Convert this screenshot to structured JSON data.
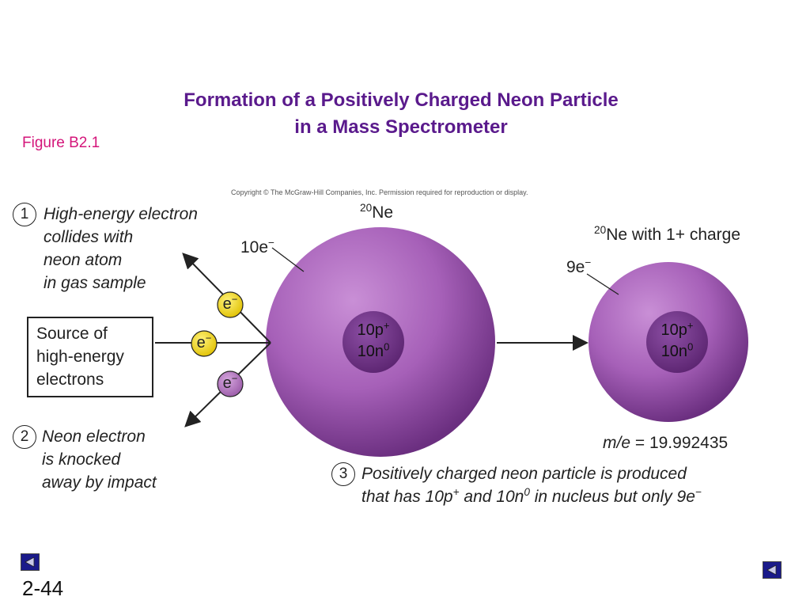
{
  "title": {
    "line1": "Formation of a Positively Charged Neon Particle",
    "line2": "in a Mass Spectrometer"
  },
  "figure_label": "Figure B2.1",
  "copyright": "Copyright © The McGraw-Hill Companies, Inc. Permission required for reproduction or display.",
  "steps": [
    {
      "number": "1",
      "lines": [
        "High-energy electron",
        "collides with",
        "neon atom",
        "in gas sample"
      ]
    },
    {
      "number": "2",
      "lines": [
        "Neon electron",
        "is knocked",
        "away by impact"
      ]
    },
    {
      "number": "3",
      "line1": "Positively charged neon particle is produced",
      "line2_a": "that has 10p",
      "line2_b": "+",
      "line2_c": " and 10n",
      "line2_d": "0",
      "line2_e": " in nucleus but only 9e",
      "line2_f": "−"
    }
  ],
  "source_box": {
    "lines": [
      "Source of",
      "high-energy",
      "electrons"
    ]
  },
  "electrons": {
    "label": "e",
    "charge": "−"
  },
  "atom_neutral": {
    "mass_number": "20",
    "symbol": "Ne",
    "electron_label": "10e",
    "electron_charge": "−",
    "protons": "10p",
    "proton_charge": "+",
    "neutrons": "10n",
    "neutron_charge": "0"
  },
  "atom_ion": {
    "mass_number": "20",
    "label": "Ne with 1+ charge",
    "electron_label": "9e",
    "electron_charge": "−",
    "protons": "10p",
    "proton_charge": "+",
    "neutrons": "10n",
    "neutron_charge": "0",
    "me_label": "m/e",
    "me_value": " = 19.992435"
  },
  "colors": {
    "atom": "#a660b8",
    "atom_dark": "#5b2470",
    "nucleus": "#7a3d94",
    "electron_yellow": "#f2d91a",
    "electron_purple": "#a86ab4",
    "title": "#5a1a8c",
    "figure_label": "#d4157a",
    "nav_button": "#1a1a8a"
  },
  "navigation": {
    "prev_icon": "triangle-left-icon",
    "next_icon": "triangle-left-icon"
  },
  "page_number": "2-44"
}
